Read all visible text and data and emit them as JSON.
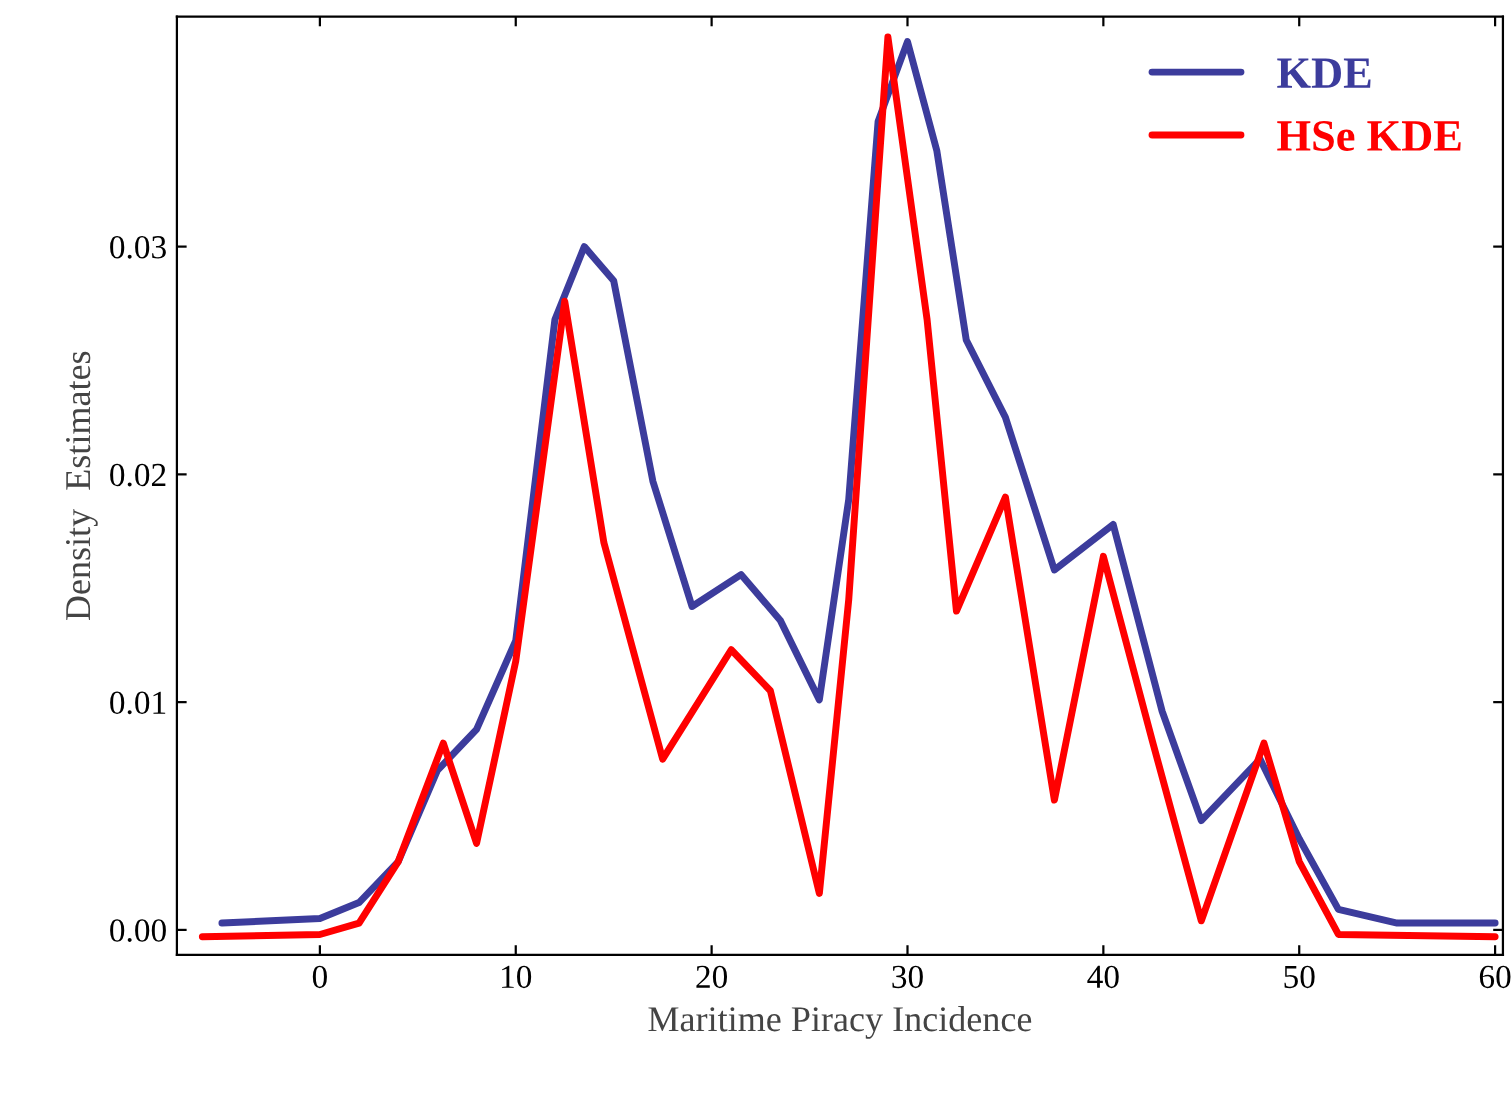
{
  "chart_data": {
    "type": "line",
    "xlabel": "Maritime Piracy Incidence",
    "ylabel": "Density  Estimates",
    "xlim": [
      -7.3,
      60.4
    ],
    "ylim": [
      -0.0011,
      0.0401
    ],
    "xticks": [
      0,
      10,
      20,
      30,
      40,
      50,
      60
    ],
    "yticks": [
      {
        "value": 0,
        "label": "0.00"
      },
      {
        "value": 0.01,
        "label": "0.01"
      },
      {
        "value": 0.02,
        "label": "0.02"
      },
      {
        "value": 0.03,
        "label": "0.03"
      }
    ],
    "grid": false,
    "legend": "top right",
    "line_style": "solid",
    "marker": "none",
    "series": [
      {
        "name": "KDE",
        "color": "#3c3c9c",
        "x": [
          -5,
          0,
          2,
          4,
          6,
          8,
          10,
          12,
          13.5,
          15,
          17,
          19,
          21.5,
          23.5,
          25.5,
          27,
          28.5,
          30,
          31.5,
          33,
          35,
          37.5,
          40.5,
          43,
          45,
          48,
          50,
          52,
          55,
          60
        ],
        "values": [
          0.0003,
          0.0005,
          0.0012,
          0.003,
          0.007,
          0.0088,
          0.0127,
          0.0268,
          0.03,
          0.0285,
          0.0197,
          0.0142,
          0.0156,
          0.0136,
          0.0101,
          0.0189,
          0.0355,
          0.039,
          0.0342,
          0.0259,
          0.0225,
          0.0158,
          0.0178,
          0.0096,
          0.0048,
          0.0075,
          0.004,
          0.0009,
          0.0003,
          0.0003
        ]
      },
      {
        "name": "HSe KDE",
        "color": "#ff0000",
        "x": [
          -6,
          0,
          2,
          4,
          6.3,
          8,
          10,
          12.5,
          14.5,
          17.5,
          21,
          23,
          25.5,
          27,
          29,
          31,
          32.5,
          35,
          37.5,
          40,
          42.5,
          45,
          48.2,
          50,
          52,
          60
        ],
        "values": [
          -0.0003,
          -0.0002,
          0.0003,
          0.003,
          0.0082,
          0.0038,
          0.0118,
          0.0276,
          0.017,
          0.0075,
          0.0123,
          0.0105,
          0.0016,
          0.0145,
          0.0392,
          0.0268,
          0.014,
          0.019,
          0.0057,
          0.0164,
          0.0083,
          0.0004,
          0.0082,
          0.003,
          -0.0002,
          -0.0003
        ]
      }
    ]
  }
}
